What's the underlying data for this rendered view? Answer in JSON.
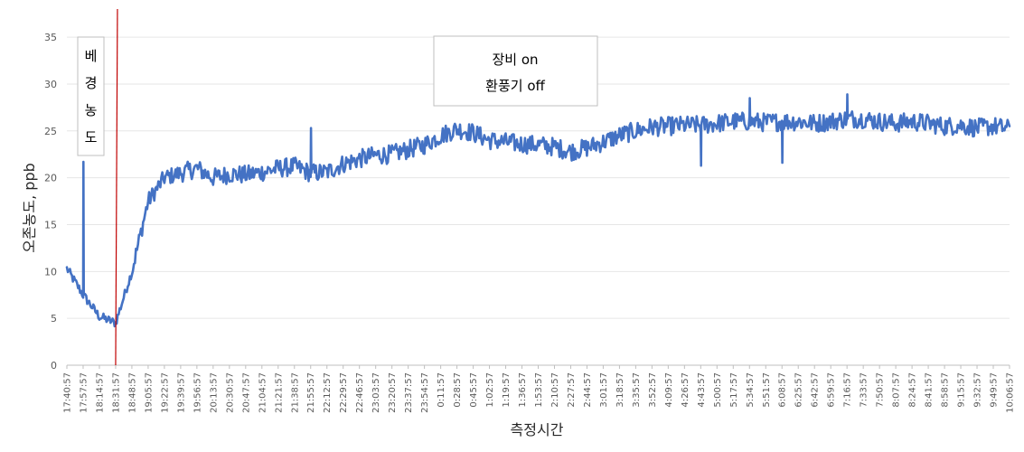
{
  "chart_data": {
    "type": "line",
    "ylabel": "오존농도, ppb",
    "xlabel": "측정시간",
    "ylim": [
      0,
      38
    ],
    "yticks": [
      0,
      5,
      10,
      15,
      20,
      25,
      30,
      35
    ],
    "grid": true,
    "color": "#4472C4",
    "marker_color": "#C00000",
    "marker_time": "18:31:57",
    "x": [
      "17:40:57",
      "17:57:57",
      "18:14:57",
      "18:31:57",
      "18:48:57",
      "19:05:57",
      "19:22:57",
      "19:39:57",
      "19:56:57",
      "20:13:57",
      "20:30:57",
      "20:47:57",
      "21:04:57",
      "21:21:57",
      "21:38:57",
      "21:55:57",
      "22:12:57",
      "22:29:57",
      "22:46:57",
      "23:03:57",
      "23:20:57",
      "23:37:57",
      "23:54:57",
      "0:11:57",
      "0:28:57",
      "0:45:57",
      "1:02:57",
      "1:19:57",
      "1:36:57",
      "1:53:57",
      "2:10:57",
      "2:27:57",
      "2:44:57",
      "3:01:57",
      "3:18:57",
      "3:35:57",
      "3:52:57",
      "4:09:57",
      "4:26:57",
      "4:43:57",
      "5:00:57",
      "5:17:57",
      "5:34:57",
      "5:51:57",
      "6:08:57",
      "6:25:57",
      "6:42:57",
      "6:59:57",
      "7:16:57",
      "7:33:57",
      "7:50:57",
      "8:07:57",
      "8:24:57",
      "8:41:57",
      "8:58:57",
      "9:15:57",
      "9:32:57",
      "9:49:57",
      "10:06:57"
    ],
    "values": [
      10.3,
      7.5,
      5.2,
      4.5,
      10.0,
      17.5,
      20.0,
      20.5,
      21.0,
      20.0,
      20.4,
      20.3,
      20.6,
      21.0,
      21.2,
      20.5,
      20.6,
      21.5,
      22.0,
      22.4,
      22.5,
      23.0,
      23.5,
      24.5,
      25.2,
      24.8,
      24.0,
      23.8,
      23.6,
      23.5,
      23.3,
      22.8,
      23.2,
      23.8,
      24.5,
      25.0,
      25.4,
      25.5,
      25.6,
      25.6,
      25.8,
      26.0,
      26.0,
      25.9,
      26.0,
      26.0,
      25.8,
      26.0,
      26.3,
      26.3,
      26.0,
      25.8,
      26.0,
      25.8,
      25.5,
      25.6,
      25.3,
      25.5,
      25.2
    ],
    "peaks": [
      {
        "time": "17:57:57",
        "value": 21.7
      },
      {
        "time": "21:55:57",
        "value": 25.3
      },
      {
        "time": "4:43:57",
        "value": 21.3
      },
      {
        "time": "5:34:57",
        "value": 28.5
      },
      {
        "time": "6:08:57",
        "value": 21.6
      },
      {
        "time": "7:16:57",
        "value": 28.9
      }
    ],
    "annotations": [
      {
        "lines": [
          "베",
          "경",
          "농",
          "도"
        ]
      },
      {
        "lines": [
          "장비 on",
          "환풍기 off"
        ]
      }
    ]
  }
}
